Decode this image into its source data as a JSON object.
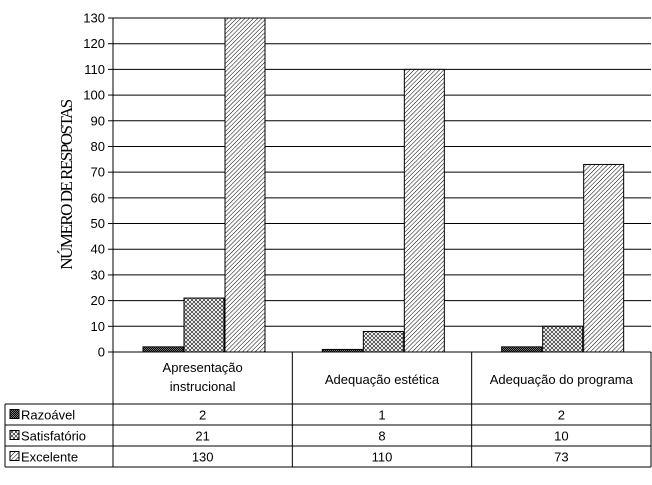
{
  "chart_data": {
    "type": "bar",
    "title": "",
    "xlabel": "",
    "ylabel": "NÚMERO DE RESPOSTAS",
    "ylim": [
      0,
      130
    ],
    "ytick_step": 10,
    "categories": [
      [
        "Apresentação",
        "instrucional"
      ],
      [
        "Adequação estética"
      ],
      [
        "Adequação do programa"
      ]
    ],
    "series": [
      {
        "name": "Razoável",
        "values": [
          2,
          1,
          2
        ],
        "pattern": "dark-checker"
      },
      {
        "name": "Satisfatório",
        "values": [
          21,
          8,
          10
        ],
        "pattern": "crosshatch"
      },
      {
        "name": "Excelente",
        "values": [
          130,
          110,
          73
        ],
        "pattern": "diagonal"
      }
    ],
    "grid": true,
    "legend": "data-table-left",
    "data_table": true
  }
}
